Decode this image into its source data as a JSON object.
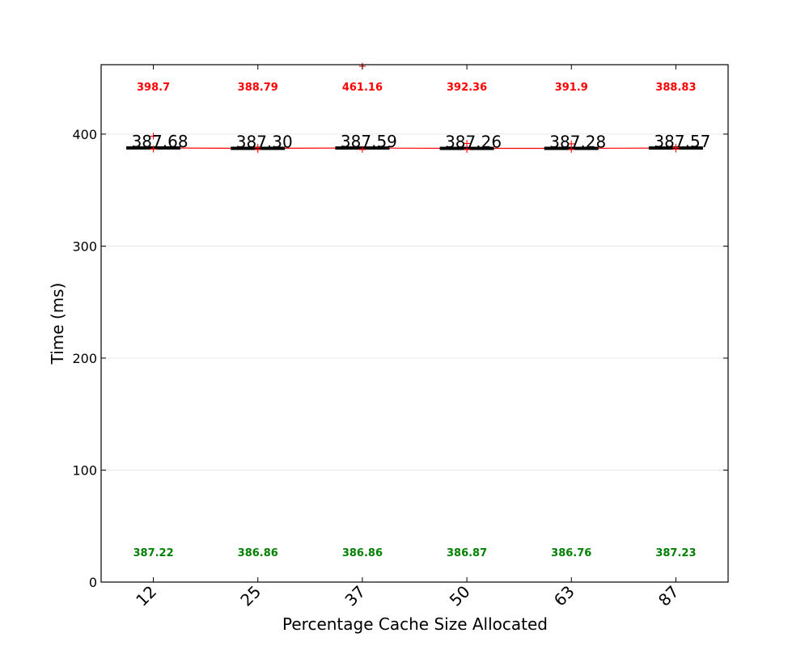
{
  "chart_data": {
    "type": "box",
    "title": "",
    "xlabel": "Percentage Cache Size Allocated",
    "ylabel": "Time (ms)",
    "ylim": [
      0,
      462
    ],
    "yticks": [
      0,
      100,
      200,
      300,
      400
    ],
    "grid": "horizontal",
    "categories": [
      "12",
      "25",
      "37",
      "50",
      "63",
      "87"
    ],
    "series": [
      {
        "max": [
          398.7,
          388.79,
          461.16,
          392.36,
          391.9,
          388.83
        ],
        "min": [
          387.22,
          386.86,
          386.86,
          386.87,
          386.76,
          387.23
        ],
        "mean": [
          387.68,
          387.3,
          387.59,
          387.26,
          387.28,
          387.57
        ],
        "median_labels": [
          "387.68",
          "387.30",
          "387.59",
          "387.26",
          "387.28",
          "387.57"
        ],
        "max_labels": [
          "398.7",
          "388.79",
          "461.16",
          "392.36",
          "391.9",
          "388.83"
        ],
        "min_labels": [
          "387.22",
          "386.86",
          "386.86",
          "386.87",
          "386.76",
          "387.23"
        ]
      }
    ],
    "colors": {
      "max": "#ff0000",
      "min": "#008000",
      "median": "#000000",
      "mean_line": "#ff0000",
      "outlier": "#ff0000"
    }
  }
}
